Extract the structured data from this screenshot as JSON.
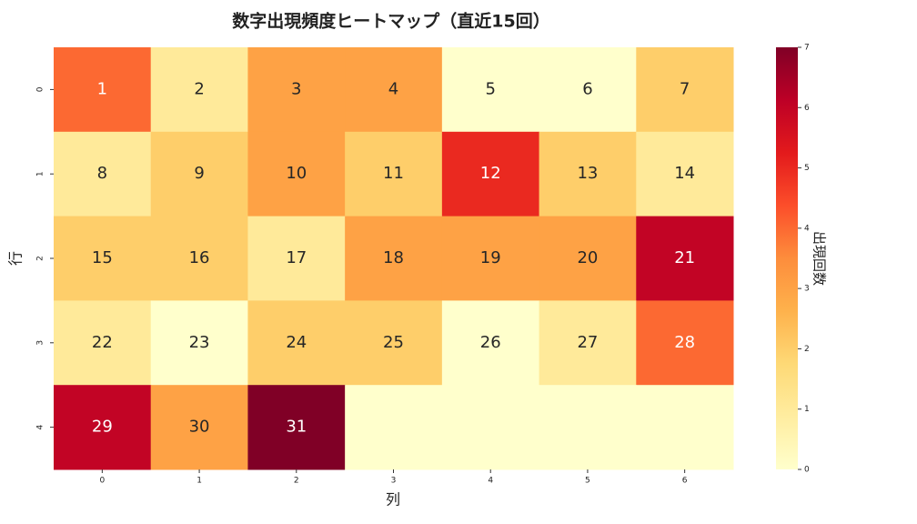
{
  "chart_data": {
    "type": "heatmap",
    "title": "数字出現頻度ヒートマップ（直近15回）",
    "xlabel": "列",
    "ylabel": "行",
    "x_categories": [
      "0",
      "1",
      "2",
      "3",
      "4",
      "5",
      "6"
    ],
    "y_categories": [
      "0",
      "1",
      "2",
      "3",
      "4"
    ],
    "values": [
      [
        4,
        1,
        3,
        3,
        0,
        0,
        2
      ],
      [
        1,
        2,
        3,
        2,
        5,
        2,
        1
      ],
      [
        2,
        2,
        1,
        3,
        3,
        3,
        6
      ],
      [
        1,
        0,
        2,
        2,
        0,
        1,
        4
      ],
      [
        6,
        3,
        7,
        0,
        0,
        0,
        0
      ]
    ],
    "annotations": [
      [
        1,
        2,
        3,
        4,
        5,
        6,
        7
      ],
      [
        8,
        9,
        10,
        11,
        12,
        13,
        14
      ],
      [
        15,
        16,
        17,
        18,
        19,
        20,
        21
      ],
      [
        22,
        23,
        24,
        25,
        26,
        27,
        28
      ],
      [
        29,
        30,
        31,
        null,
        null,
        null,
        null
      ]
    ],
    "colormap": [
      "#ffffcc",
      "#ffeda0",
      "#fed976",
      "#feb24c",
      "#fd8d3c",
      "#fc4e2a",
      "#e31a1c",
      "#bd0026",
      "#800026"
    ],
    "colorbar_label": "出現回数",
    "clim": [
      0,
      7
    ],
    "colorbar_ticks": [
      0,
      1,
      2,
      3,
      4,
      5,
      6,
      7
    ]
  }
}
